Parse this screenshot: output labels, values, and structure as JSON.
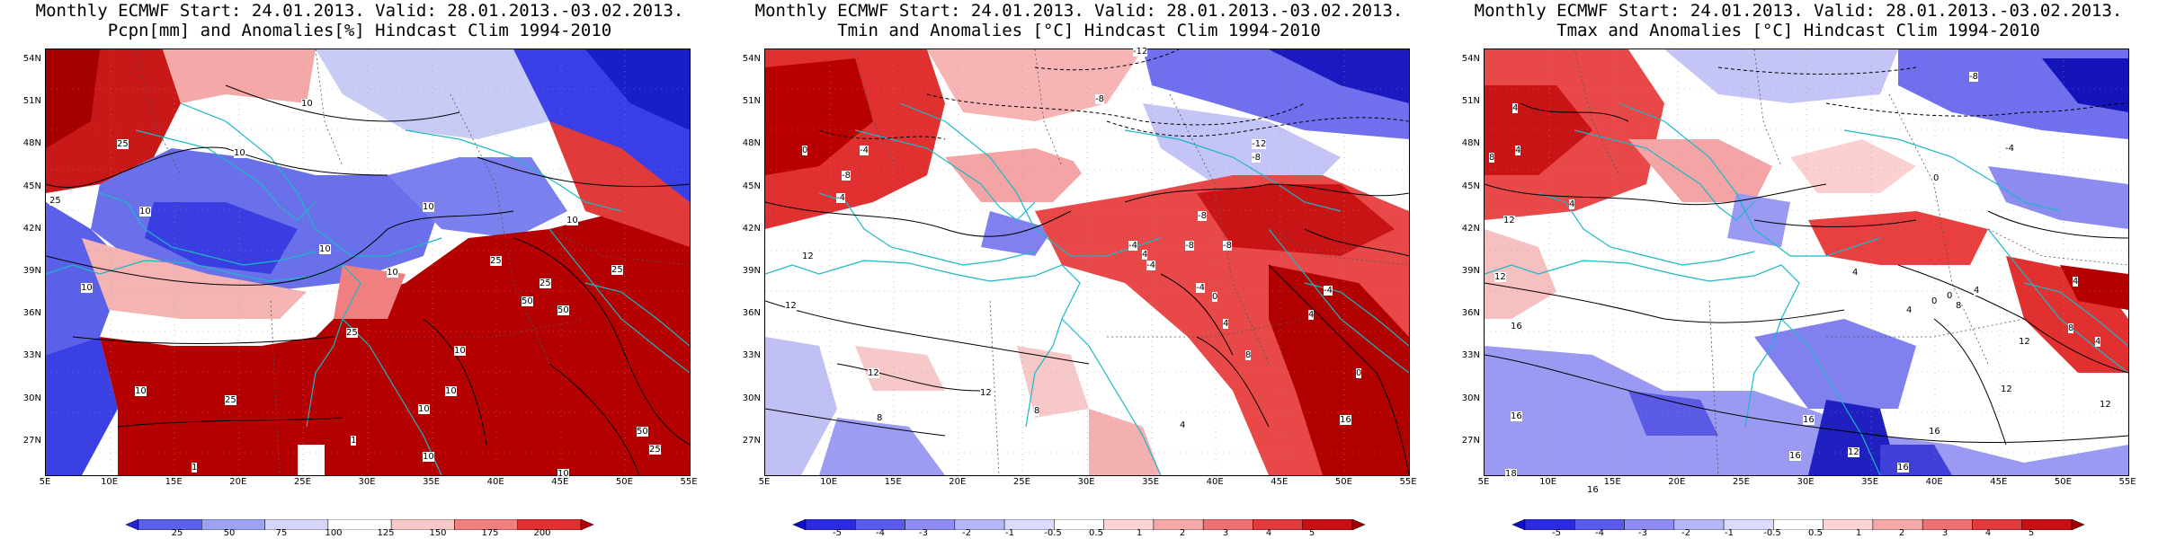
{
  "panels": [
    {
      "title_line1": "Monthly ECMWF Start: 24.01.2013. Valid: 28.01.2013.-03.02.2013.",
      "title_line2": "Pcpn[mm] and Anomalies[%] Hindcast Clim 1994-2010",
      "colorbar_ticks": [
        "25",
        "50",
        "75",
        "100",
        "125",
        "150",
        "175",
        "200"
      ],
      "colorbar_colors": [
        "#1f22d8",
        "#5b60ea",
        "#9ea2f2",
        "#d3d5f8",
        "#ffffff",
        "#f8c8c8",
        "#f08080",
        "#e23030",
        "#b40000"
      ],
      "contour_labels": [
        "10",
        "25",
        "10",
        "10",
        "25",
        "10",
        "10",
        "10",
        "10",
        "10",
        "25",
        "25",
        "10",
        "25",
        "50",
        "25",
        "10",
        "10",
        "25",
        "10",
        "1",
        "1",
        "50",
        "50",
        "10",
        "10",
        "25"
      ]
    },
    {
      "title_line1": "Monthly ECMWF Start: 24.01.2013. Valid: 28.01.2013.-03.02.2013.",
      "title_line2": "Tmin and Anomalies [°C] Hindcast Clim 1994-2010",
      "colorbar_ticks": [
        "-5",
        "-4",
        "-3",
        "-2",
        "-1",
        "-0.5",
        "0.5",
        "1",
        "2",
        "3",
        "4",
        "5"
      ],
      "colorbar_colors": [
        "#1010c8",
        "#2a2ae0",
        "#5a5aee",
        "#8c8cf4",
        "#b4b4f8",
        "#dcdcfa",
        "#ffffff",
        "#fcd6d6",
        "#f6a8a8",
        "#ee7070",
        "#e23a3a",
        "#c81010",
        "#a00000"
      ],
      "contour_labels": [
        "-12",
        "-8",
        "-12",
        "-8",
        "-4",
        "-8",
        "0",
        "-4",
        "-8",
        "-4",
        "-8",
        "4",
        "-8",
        "-4",
        "-4",
        "0",
        "12",
        "4",
        "-4",
        "4",
        "12",
        "12",
        "12",
        "8",
        "8",
        "8",
        "4",
        "0",
        "16"
      ]
    },
    {
      "title_line1": "Monthly ECMWF Start: 24.01.2013. Valid: 28.01.2013.-03.02.2013.",
      "title_line2": "Tmax and Anomalies [°C] Hindcast Clim 1994-2010",
      "colorbar_ticks": [
        "-5",
        "-4",
        "-3",
        "-2",
        "-1",
        "-0.5",
        "0.5",
        "1",
        "2",
        "3",
        "4",
        "5"
      ],
      "colorbar_colors": [
        "#1010c8",
        "#2a2ae0",
        "#5a5aee",
        "#8c8cf4",
        "#b4b4f8",
        "#dcdcfa",
        "#ffffff",
        "#fcd6d6",
        "#f6a8a8",
        "#ee7070",
        "#e23a3a",
        "#c81010",
        "#a00000"
      ],
      "contour_labels": [
        "-8",
        "-4",
        "4",
        "4",
        "8",
        "4",
        "0",
        "4",
        "0",
        "12",
        "12",
        "4",
        "0",
        "8",
        "4",
        "4",
        "8",
        "12",
        "16",
        "16",
        "12",
        "16",
        "16",
        "16",
        "18",
        "16",
        "16",
        "12",
        "4",
        "12"
      ]
    }
  ],
  "lat_labels": [
    "54N",
    "51N",
    "48N",
    "45N",
    "42N",
    "39N",
    "36N",
    "33N",
    "30N",
    "27N"
  ],
  "lon_labels": [
    "5E",
    "10E",
    "15E",
    "20E",
    "25E",
    "30E",
    "35E",
    "40E",
    "45E",
    "50E",
    "55E"
  ],
  "colors": {
    "coast": "#1ab8c8",
    "contour": "#000000",
    "border_dashed": "#555555"
  }
}
